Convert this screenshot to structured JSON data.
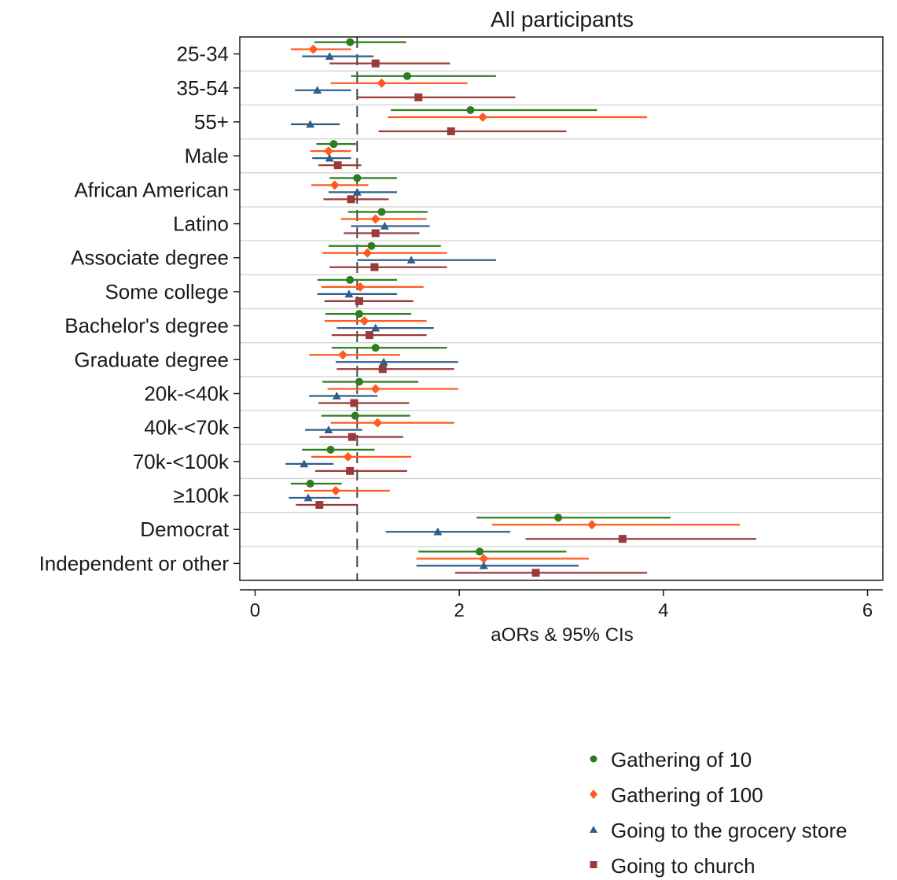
{
  "chart_data": {
    "type": "forest",
    "title": "All participants",
    "xlabel": "aORs & 95% CIs",
    "ylabel": "",
    "xlim": [
      -0.15,
      6.15
    ],
    "xticks": [
      "0",
      "2",
      "4",
      "6"
    ],
    "reference_line": 1,
    "grid": "horizontal row separators",
    "legend_position": "bottom-right",
    "categories": [
      "25-34",
      "35-54",
      "55+",
      "Male",
      "African American",
      "Latino",
      "Associate degree",
      "Some college",
      "Bachelor's degree",
      "Graduate degree",
      "20k-<40k",
      "40k-<70k",
      "70k-<100k",
      "≥100k",
      "Democrat",
      "Independent or other"
    ],
    "series": [
      {
        "name": "Gathering of 10",
        "color": "#2e7d1f",
        "marker": "circle",
        "points": [
          {
            "est": 0.93,
            "lo": 0.58,
            "hi": 1.48
          },
          {
            "est": 1.49,
            "lo": 0.94,
            "hi": 2.36
          },
          {
            "est": 2.11,
            "lo": 1.33,
            "hi": 3.35
          },
          {
            "est": 0.77,
            "lo": 0.6,
            "hi": 0.99
          },
          {
            "est": 1.0,
            "lo": 0.73,
            "hi": 1.39
          },
          {
            "est": 1.24,
            "lo": 0.91,
            "hi": 1.69
          },
          {
            "est": 1.14,
            "lo": 0.72,
            "hi": 1.82
          },
          {
            "est": 0.93,
            "lo": 0.61,
            "hi": 1.39
          },
          {
            "est": 1.02,
            "lo": 0.69,
            "hi": 1.53
          },
          {
            "est": 1.18,
            "lo": 0.75,
            "hi": 1.88
          },
          {
            "est": 1.02,
            "lo": 0.66,
            "hi": 1.6
          },
          {
            "est": 0.98,
            "lo": 0.65,
            "hi": 1.52
          },
          {
            "est": 0.74,
            "lo": 0.46,
            "hi": 1.17
          },
          {
            "est": 0.54,
            "lo": 0.35,
            "hi": 0.85
          },
          {
            "est": 2.97,
            "lo": 2.17,
            "hi": 4.07
          },
          {
            "est": 2.2,
            "lo": 1.6,
            "hi": 3.05
          }
        ]
      },
      {
        "name": "Gathering of 100",
        "color": "#ff5a1f",
        "marker": "diamond",
        "points": [
          {
            "est": 0.57,
            "lo": 0.35,
            "hi": 0.94
          },
          {
            "est": 1.24,
            "lo": 0.74,
            "hi": 2.08
          },
          {
            "est": 2.23,
            "lo": 1.3,
            "hi": 3.84
          },
          {
            "est": 0.72,
            "lo": 0.54,
            "hi": 0.94
          },
          {
            "est": 0.78,
            "lo": 0.55,
            "hi": 1.11
          },
          {
            "est": 1.18,
            "lo": 0.84,
            "hi": 1.68
          },
          {
            "est": 1.1,
            "lo": 0.66,
            "hi": 1.88
          },
          {
            "est": 1.03,
            "lo": 0.65,
            "hi": 1.65
          },
          {
            "est": 1.07,
            "lo": 0.68,
            "hi": 1.68
          },
          {
            "est": 0.86,
            "lo": 0.53,
            "hi": 1.42
          },
          {
            "est": 1.18,
            "lo": 0.71,
            "hi": 1.99
          },
          {
            "est": 1.2,
            "lo": 0.74,
            "hi": 1.95
          },
          {
            "est": 0.91,
            "lo": 0.55,
            "hi": 1.53
          },
          {
            "est": 0.79,
            "lo": 0.48,
            "hi": 1.32
          },
          {
            "est": 3.3,
            "lo": 2.32,
            "hi": 4.75
          },
          {
            "est": 2.24,
            "lo": 1.58,
            "hi": 3.27
          }
        ]
      },
      {
        "name": "Going to the grocery store",
        "color": "#2e5f8a",
        "marker": "triangle",
        "points": [
          {
            "est": 0.73,
            "lo": 0.46,
            "hi": 1.16
          },
          {
            "est": 0.61,
            "lo": 0.39,
            "hi": 0.94
          },
          {
            "est": 0.54,
            "lo": 0.35,
            "hi": 0.83
          },
          {
            "est": 0.73,
            "lo": 0.56,
            "hi": 0.94
          },
          {
            "est": 1.0,
            "lo": 0.72,
            "hi": 1.39
          },
          {
            "est": 1.27,
            "lo": 0.94,
            "hi": 1.71
          },
          {
            "est": 1.53,
            "lo": 1.0,
            "hi": 2.36
          },
          {
            "est": 0.92,
            "lo": 0.61,
            "hi": 1.39
          },
          {
            "est": 1.18,
            "lo": 0.8,
            "hi": 1.75
          },
          {
            "est": 1.26,
            "lo": 0.79,
            "hi": 1.99
          },
          {
            "est": 0.8,
            "lo": 0.53,
            "hi": 1.2
          },
          {
            "est": 0.72,
            "lo": 0.49,
            "hi": 1.05
          },
          {
            "est": 0.48,
            "lo": 0.3,
            "hi": 0.77
          },
          {
            "est": 0.52,
            "lo": 0.33,
            "hi": 0.83
          },
          {
            "est": 1.79,
            "lo": 1.28,
            "hi": 2.5
          },
          {
            "est": 2.24,
            "lo": 1.58,
            "hi": 3.17
          }
        ]
      },
      {
        "name": "Going to church",
        "color": "#9a3a3a",
        "marker": "square",
        "points": [
          {
            "est": 1.18,
            "lo": 0.73,
            "hi": 1.91
          },
          {
            "est": 1.6,
            "lo": 1.0,
            "hi": 2.55
          },
          {
            "est": 1.92,
            "lo": 1.21,
            "hi": 3.05
          },
          {
            "est": 0.81,
            "lo": 0.62,
            "hi": 1.04
          },
          {
            "est": 0.94,
            "lo": 0.67,
            "hi": 1.31
          },
          {
            "est": 1.18,
            "lo": 0.87,
            "hi": 1.61
          },
          {
            "est": 1.17,
            "lo": 0.73,
            "hi": 1.88
          },
          {
            "est": 1.02,
            "lo": 0.68,
            "hi": 1.55
          },
          {
            "est": 1.12,
            "lo": 0.75,
            "hi": 1.68
          },
          {
            "est": 1.25,
            "lo": 0.8,
            "hi": 1.95
          },
          {
            "est": 0.97,
            "lo": 0.62,
            "hi": 1.51
          },
          {
            "est": 0.95,
            "lo": 0.63,
            "hi": 1.45
          },
          {
            "est": 0.93,
            "lo": 0.59,
            "hi": 1.49
          },
          {
            "est": 0.63,
            "lo": 0.4,
            "hi": 1.0
          },
          {
            "est": 3.6,
            "lo": 2.65,
            "hi": 4.91
          },
          {
            "est": 2.75,
            "lo": 1.96,
            "hi": 3.84
          }
        ]
      }
    ]
  }
}
